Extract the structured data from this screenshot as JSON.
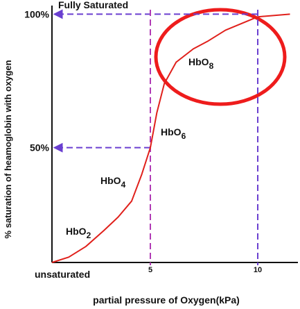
{
  "chart_data": {
    "type": "line",
    "title": "Fully Saturated",
    "x_label": "partial pressure of Oxygen(kPa)",
    "y_label": "% saturation of heamoglobin with oxygen",
    "bottom_label": "unsaturated",
    "x": [
      0.42,
      1.2,
      2.0,
      2.84,
      3.5,
      4.13,
      4.6,
      5,
      5.3,
      5.65,
      6.2,
      7,
      7.7,
      8.5,
      10,
      11.5
    ],
    "series": [
      {
        "color": "#e0201b",
        "values": [
          7,
          9,
          13,
          19,
          24,
          30,
          40,
          50,
          63,
          74,
          82,
          87,
          90,
          94,
          99,
          100
        ]
      }
    ],
    "xlim": [
      0.42,
      11.87
    ],
    "ylim": [
      7,
      104
    ],
    "xticks": [
      5,
      10
    ],
    "yticks": [
      {
        "value": 50,
        "label": "50%"
      },
      {
        "value": 100,
        "label": "100%"
      }
    ],
    "annotations": [
      {
        "text": "HbO",
        "sub": "2"
      },
      {
        "text": "HbO",
        "sub": "4"
      },
      {
        "text": "HbO",
        "sub": "6"
      },
      {
        "text": "HbO",
        "sub": "8"
      }
    ]
  }
}
